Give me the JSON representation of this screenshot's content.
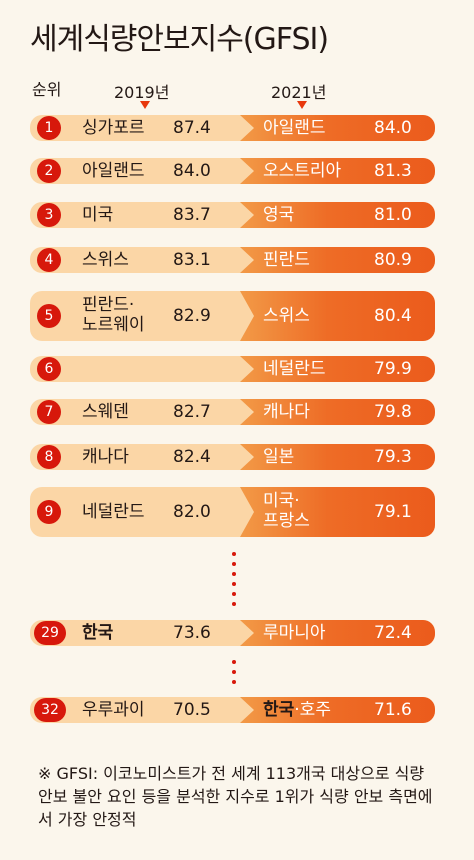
{
  "title": "세계식량안보지수(GFSI)",
  "headers": {
    "rank": "순위",
    "y2019": "2019년",
    "y2021": "2021년"
  },
  "colors": {
    "badge": "#d7180b",
    "left_bg": "#fbd6a6",
    "right_bg": "#eb5b1c",
    "page_bg": "#fbf6ec"
  },
  "chart_data": {
    "type": "table",
    "title": "세계식량안보지수(GFSI)",
    "columns": [
      "순위",
      "2019년",
      "2021년"
    ],
    "rows": [
      {
        "rank": "1",
        "country_2019": "싱가포르",
        "score_2019": "87.4",
        "country_2021": "아일랜드",
        "score_2021": "84.0"
      },
      {
        "rank": "2",
        "country_2019": "아일랜드",
        "score_2019": "84.0",
        "country_2021": "오스트리아",
        "score_2021": "81.3"
      },
      {
        "rank": "3",
        "country_2019": "미국",
        "score_2019": "83.7",
        "country_2021": "영국",
        "score_2021": "81.0"
      },
      {
        "rank": "4",
        "country_2019": "스위스",
        "score_2019": "83.1",
        "country_2021": "핀란드",
        "score_2021": "80.9"
      },
      {
        "rank": "5",
        "country_2019": "핀란드·노르웨이",
        "score_2019": "82.9",
        "country_2021": "스위스",
        "score_2021": "80.4"
      },
      {
        "rank": "6",
        "country_2019": "",
        "score_2019": "",
        "country_2021": "네덜란드",
        "score_2021": "79.9"
      },
      {
        "rank": "7",
        "country_2019": "스웨덴",
        "score_2019": "82.7",
        "country_2021": "캐나다",
        "score_2021": "79.8"
      },
      {
        "rank": "8",
        "country_2019": "캐나다",
        "score_2019": "82.4",
        "country_2021": "일본",
        "score_2021": "79.3"
      },
      {
        "rank": "9",
        "country_2019": "네덜란드",
        "score_2019": "82.0",
        "country_2021": "미국·프랑스",
        "score_2021": "79.1"
      },
      {
        "rank": "29",
        "country_2019": "한국",
        "score_2019": "73.6",
        "country_2021": "루마니아",
        "score_2021": "72.4"
      },
      {
        "rank": "32",
        "country_2019": "우루과이",
        "score_2019": "70.5",
        "country_2021": "한국·호주",
        "score_2021": "71.6"
      }
    ]
  },
  "labels": {
    "r5_2019_l1": "핀란드·",
    "r5_2019_l2": "노르웨이",
    "r9_2021_l1": "미국·",
    "r9_2021_l2": "프랑스",
    "r32_2021_a": "한국",
    "r32_2021_b": "·호주"
  },
  "footnote": "※ GFSI: 이코노미스트가 전 세계 113개국 대상으로 식량 안보 불안 요인 등을 분석한 지수로 1위가 식량 안보 측면에서 가장 안정적"
}
